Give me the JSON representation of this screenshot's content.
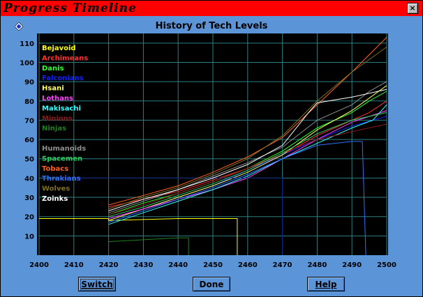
{
  "window": {
    "title": "Progress Timeline",
    "close_label": "×"
  },
  "diamond_icon": "diamond-icon",
  "buttons": {
    "switch": "Switch",
    "done": "Done",
    "help": "Help"
  },
  "colors": {
    "background": "#5b95d8",
    "plot": "#000000",
    "grid": "#2e7f82",
    "titlebar": "#ff0000"
  },
  "chart_data": {
    "type": "line",
    "title": "History of Tech Levels",
    "xlim": [
      2400,
      2500
    ],
    "ylim": [
      0,
      115
    ],
    "x_ticks": [
      2400,
      2410,
      2420,
      2430,
      2440,
      2450,
      2460,
      2470,
      2480,
      2490,
      2500
    ],
    "y_ticks": [
      10,
      20,
      30,
      40,
      50,
      60,
      70,
      80,
      90,
      100,
      110
    ],
    "grid": true,
    "legend_position": "top-left",
    "series": [
      {
        "name": "Bejavoid",
        "color": "#ffff00",
        "points": [
          [
            2400,
            19
          ],
          [
            2420,
            19
          ],
          [
            2420,
            18
          ],
          [
            2440,
            19
          ],
          [
            2457,
            19
          ],
          [
            2457,
            0
          ]
        ]
      },
      {
        "name": "Archimeans",
        "color": "#ff3030",
        "points": [
          [
            2420,
            25
          ],
          [
            2430,
            29
          ],
          [
            2440,
            33
          ],
          [
            2450,
            39
          ],
          [
            2460,
            45
          ],
          [
            2470,
            52
          ],
          [
            2480,
            62
          ],
          [
            2490,
            70
          ],
          [
            2495,
            74
          ],
          [
            2500,
            80
          ]
        ]
      },
      {
        "name": "Danis",
        "color": "#30ff30",
        "points": [
          [
            2420,
            21
          ],
          [
            2430,
            27
          ],
          [
            2440,
            32
          ],
          [
            2450,
            38
          ],
          [
            2460,
            45
          ],
          [
            2470,
            54
          ],
          [
            2480,
            66
          ],
          [
            2490,
            74
          ],
          [
            2495,
            80
          ],
          [
            2500,
            85
          ]
        ]
      },
      {
        "name": "Falconians",
        "color": "#1020ff",
        "points": [
          [
            2420,
            19
          ],
          [
            2430,
            24
          ],
          [
            2440,
            30
          ],
          [
            2450,
            36
          ],
          [
            2460,
            44
          ],
          [
            2470,
            52
          ],
          [
            2480,
            60
          ],
          [
            2490,
            67
          ],
          [
            2500,
            72
          ]
        ]
      },
      {
        "name": "Hsani",
        "color": "#ffff60",
        "points": [
          [
            2420,
            18
          ],
          [
            2430,
            24
          ],
          [
            2440,
            30
          ],
          [
            2450,
            36
          ],
          [
            2460,
            43
          ],
          [
            2470,
            52
          ],
          [
            2480,
            65
          ],
          [
            2490,
            75
          ],
          [
            2500,
            88
          ]
        ]
      },
      {
        "name": "Lothans",
        "color": "#ff40ff",
        "points": [
          [
            2420,
            19
          ],
          [
            2430,
            24
          ],
          [
            2440,
            29
          ],
          [
            2450,
            34
          ],
          [
            2460,
            40
          ],
          [
            2470,
            50
          ],
          [
            2480,
            60
          ],
          [
            2490,
            69
          ],
          [
            2500,
            75
          ]
        ]
      },
      {
        "name": "Makisachi",
        "color": "#30ffff",
        "points": [
          [
            2420,
            16
          ],
          [
            2430,
            22
          ],
          [
            2440,
            28
          ],
          [
            2450,
            34
          ],
          [
            2460,
            41
          ],
          [
            2470,
            50
          ],
          [
            2480,
            58
          ],
          [
            2490,
            66
          ],
          [
            2496,
            70
          ],
          [
            2500,
            78
          ]
        ]
      },
      {
        "name": "Minions",
        "color": "#8b1a1a",
        "points": [
          [
            2420,
            21
          ],
          [
            2430,
            26
          ],
          [
            2440,
            32
          ],
          [
            2450,
            38
          ],
          [
            2460,
            45
          ],
          [
            2470,
            53
          ],
          [
            2480,
            60
          ],
          [
            2490,
            64
          ],
          [
            2500,
            68
          ]
        ]
      },
      {
        "name": "Ninjas",
        "color": "#208020",
        "points": [
          [
            2420,
            7
          ],
          [
            2430,
            8
          ],
          [
            2440,
            9
          ],
          [
            2443,
            9
          ],
          [
            2443,
            0
          ]
        ]
      },
      {
        "name": "",
        "color": "#102080",
        "points": [
          [
            2405,
            40
          ],
          [
            2420,
            40
          ],
          [
            2440,
            40
          ],
          [
            2460,
            40
          ],
          [
            2470,
            40
          ],
          [
            2470,
            0
          ]
        ]
      },
      {
        "name": "Humanoids",
        "color": "#909090",
        "points": [
          [
            2420,
            22
          ],
          [
            2430,
            28
          ],
          [
            2440,
            34
          ],
          [
            2450,
            41
          ],
          [
            2460,
            48
          ],
          [
            2470,
            56
          ],
          [
            2480,
            70
          ],
          [
            2490,
            78
          ],
          [
            2495,
            85
          ],
          [
            2500,
            90
          ]
        ]
      },
      {
        "name": "Spacemen",
        "color": "#30d060",
        "points": [
          [
            2420,
            20
          ],
          [
            2430,
            25
          ],
          [
            2440,
            31
          ],
          [
            2450,
            37
          ],
          [
            2460,
            44
          ],
          [
            2470,
            53
          ],
          [
            2480,
            63
          ],
          [
            2490,
            70
          ],
          [
            2500,
            74
          ]
        ]
      },
      {
        "name": "Tobacs",
        "color": "#ff6020",
        "points": [
          [
            2420,
            26
          ],
          [
            2430,
            31
          ],
          [
            2440,
            36
          ],
          [
            2450,
            43
          ],
          [
            2460,
            51
          ],
          [
            2470,
            61
          ],
          [
            2480,
            78
          ],
          [
            2490,
            95
          ],
          [
            2500,
            113
          ]
        ]
      },
      {
        "name": "Thrakians",
        "color": "#3070ff",
        "points": [
          [
            2420,
            17
          ],
          [
            2430,
            23
          ],
          [
            2440,
            29
          ],
          [
            2450,
            35
          ],
          [
            2460,
            42
          ],
          [
            2470,
            50
          ],
          [
            2480,
            57
          ],
          [
            2490,
            59
          ],
          [
            2493,
            59
          ],
          [
            2494,
            0
          ]
        ]
      },
      {
        "name": "Wolves",
        "color": "#807020",
        "points": [
          [
            2420,
            24
          ],
          [
            2430,
            30
          ],
          [
            2440,
            35
          ],
          [
            2450,
            42
          ],
          [
            2460,
            50
          ],
          [
            2470,
            62
          ],
          [
            2480,
            80
          ],
          [
            2490,
            95
          ],
          [
            2500,
            108
          ]
        ]
      },
      {
        "name": "Zoinks",
        "color": "#ffffff",
        "points": [
          [
            2420,
            23
          ],
          [
            2430,
            29
          ],
          [
            2440,
            34
          ],
          [
            2450,
            40
          ],
          [
            2460,
            47
          ],
          [
            2470,
            57
          ],
          [
            2478,
            75
          ],
          [
            2480,
            79
          ],
          [
            2490,
            82
          ],
          [
            2500,
            86
          ]
        ]
      }
    ]
  }
}
